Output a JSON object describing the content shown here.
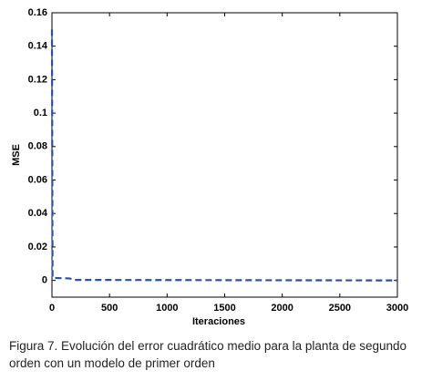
{
  "chart_data": {
    "type": "line",
    "xlabel": "Iteraciones",
    "ylabel": "MSE",
    "caption": "Figura 7. Evolución del error cuadrático medio para la planta de segundo orden con un modelo de primer orden",
    "x": [
      0,
      5,
      10,
      100,
      150,
      200,
      3000
    ],
    "series": [
      {
        "color": "#2e4f9e",
        "values": [
          0.15,
          0.002,
          0.0015,
          0.0013,
          0.0012,
          0.0003,
          0
        ]
      }
    ],
    "xlim": [
      0,
      3000
    ],
    "xticks": [
      0,
      500,
      1000,
      1500,
      2000,
      2500,
      3000
    ],
    "ylim": [
      -0.01,
      0.16
    ],
    "yticks": [
      0,
      0.02,
      0.04,
      0.06,
      0.08,
      0.1,
      0.12,
      0.14,
      0.16
    ],
    "grid": false,
    "dashed": true
  }
}
